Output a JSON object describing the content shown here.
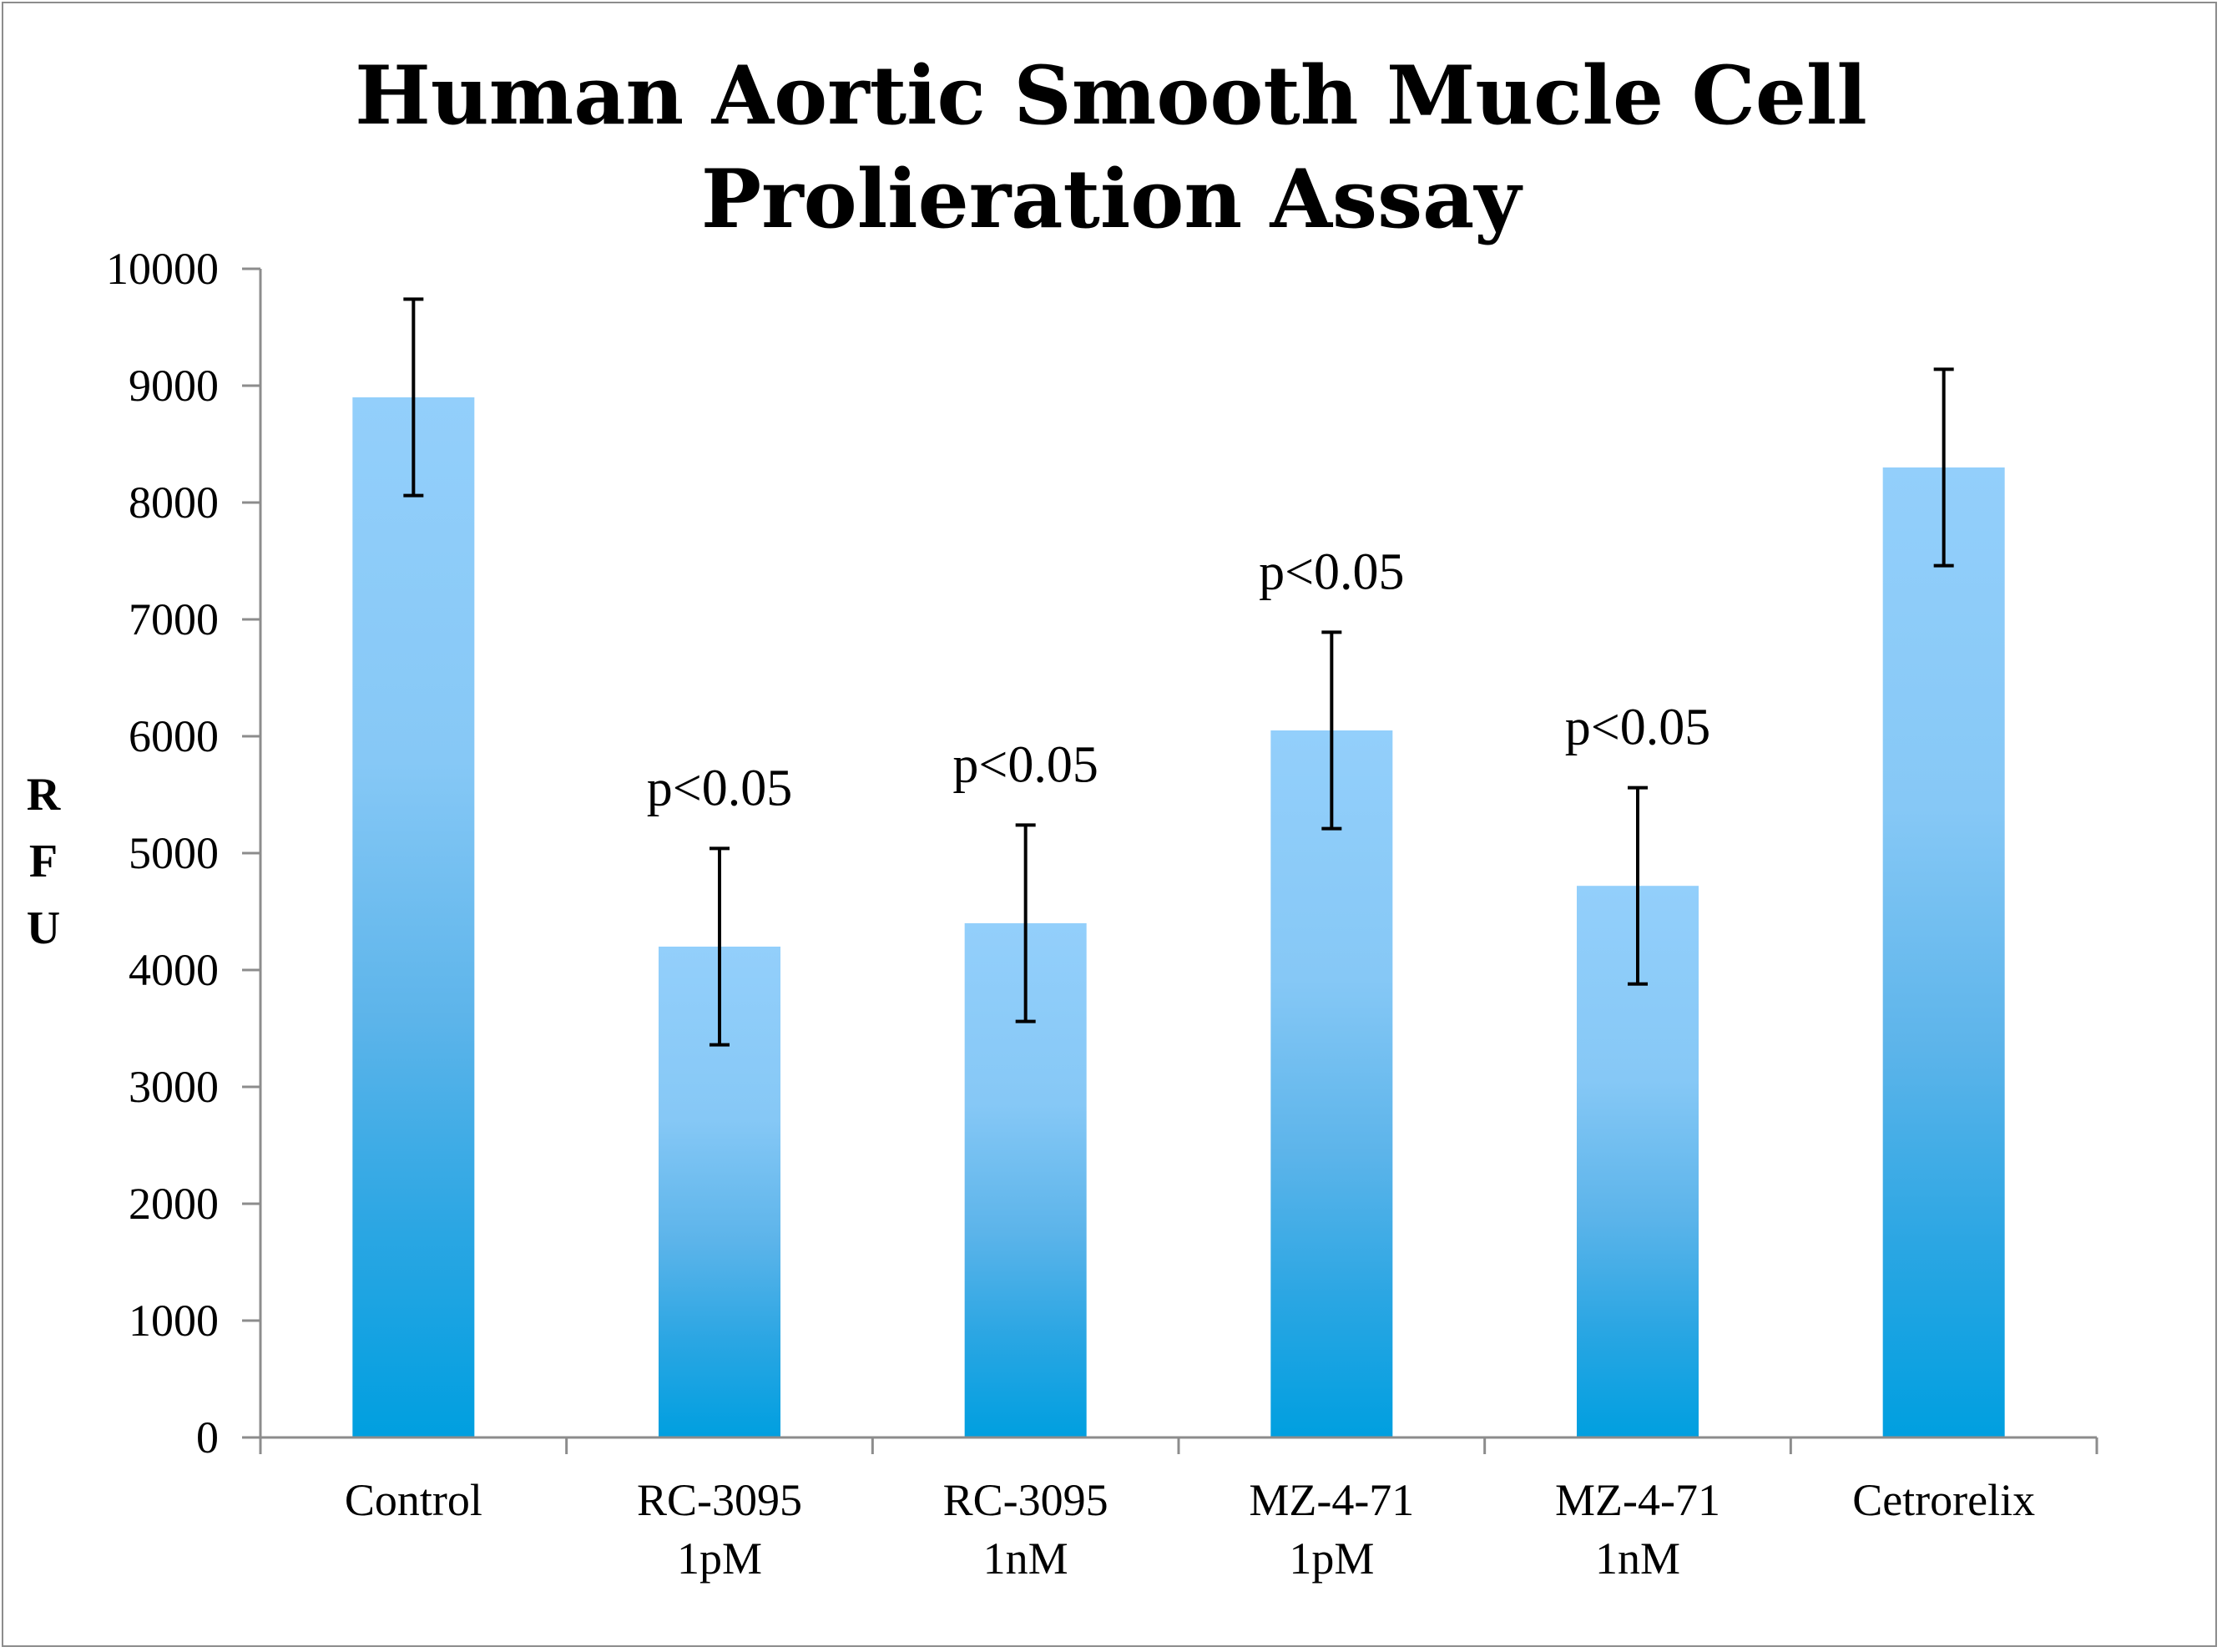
{
  "chart_data": {
    "type": "bar",
    "title": [
      "Human Aortic Smooth Mucle Cell",
      "Prolieration Assay"
    ],
    "ylabel": "RFU",
    "xlabel": "",
    "ylim": [
      0,
      10000
    ],
    "yticks": [
      "0",
      "1000",
      "2000",
      "3000",
      "4000",
      "5000",
      "6000",
      "7000",
      "8000",
      "9000",
      "10000"
    ],
    "categories": [
      [
        "Control"
      ],
      [
        "RC-3095",
        "1pM"
      ],
      [
        "RC-3095",
        "1nM"
      ],
      [
        "MZ-4-71",
        "1pM"
      ],
      [
        "MZ-4-71",
        "1nM"
      ],
      [
        "Cetrorelix"
      ]
    ],
    "values": [
      8900,
      4200,
      4400,
      6050,
      4720,
      8300
    ],
    "error": [
      840,
      840,
      840,
      840,
      840,
      840
    ],
    "annotations": [
      "",
      "p<0.05",
      "p<0.05",
      "p<0.05",
      "p<0.05",
      ""
    ],
    "grid": false,
    "legend": "none",
    "colors": {
      "bar_top": "#93cffb",
      "bar_bottom": "#009fe0",
      "axis": "#8c8c8c",
      "error": "#000000"
    }
  }
}
